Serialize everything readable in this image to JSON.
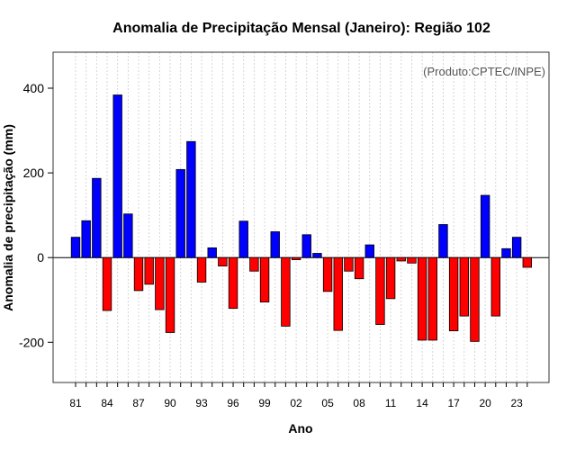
{
  "chart_data": {
    "type": "bar",
    "title": "Anomalia de Precipitação Mensal (Janeiro): Região 102",
    "xlabel": "Ano",
    "ylabel": "Anomalia de precipitação (mm)",
    "credit": "(Produto:CPTEC/INPE)",
    "ylim": [
      -295,
      485
    ],
    "yticks": [
      400,
      200,
      0,
      -200
    ],
    "ytick_labels": [
      "400",
      "200",
      "0",
      "-200"
    ],
    "categories": [
      "1981",
      "1982",
      "1983",
      "1984",
      "1985",
      "1986",
      "1987",
      "1988",
      "1989",
      "1990",
      "1991",
      "1992",
      "1993",
      "1994",
      "1995",
      "1996",
      "1997",
      "1998",
      "1999",
      "2000",
      "2001",
      "2002",
      "2003",
      "2004",
      "2005",
      "2006",
      "2007",
      "2008",
      "2009",
      "2010",
      "2011",
      "2012",
      "2013",
      "2014",
      "2015",
      "2016",
      "2017",
      "2018",
      "2019",
      "2020",
      "2021",
      "2022",
      "2023",
      "2024"
    ],
    "xtick_labels": [
      "81",
      "84",
      "87",
      "90",
      "93",
      "96",
      "99",
      "02",
      "05",
      "08",
      "11",
      "14",
      "17",
      "20",
      "23"
    ],
    "values": [
      48,
      87,
      187,
      -125,
      384,
      103,
      -78,
      -63,
      -123,
      -177,
      208,
      274,
      -58,
      23,
      -20,
      -120,
      86,
      -32,
      -105,
      61,
      -162,
      -5,
      54,
      10,
      -80,
      -172,
      -32,
      -50,
      30,
      -158,
      -97,
      -8,
      -13,
      -195,
      -195,
      78,
      -173,
      -138,
      -198,
      147,
      -138,
      21,
      48,
      -23
    ],
    "positive_color": "#0000ff",
    "negative_color": "#ff0000"
  }
}
